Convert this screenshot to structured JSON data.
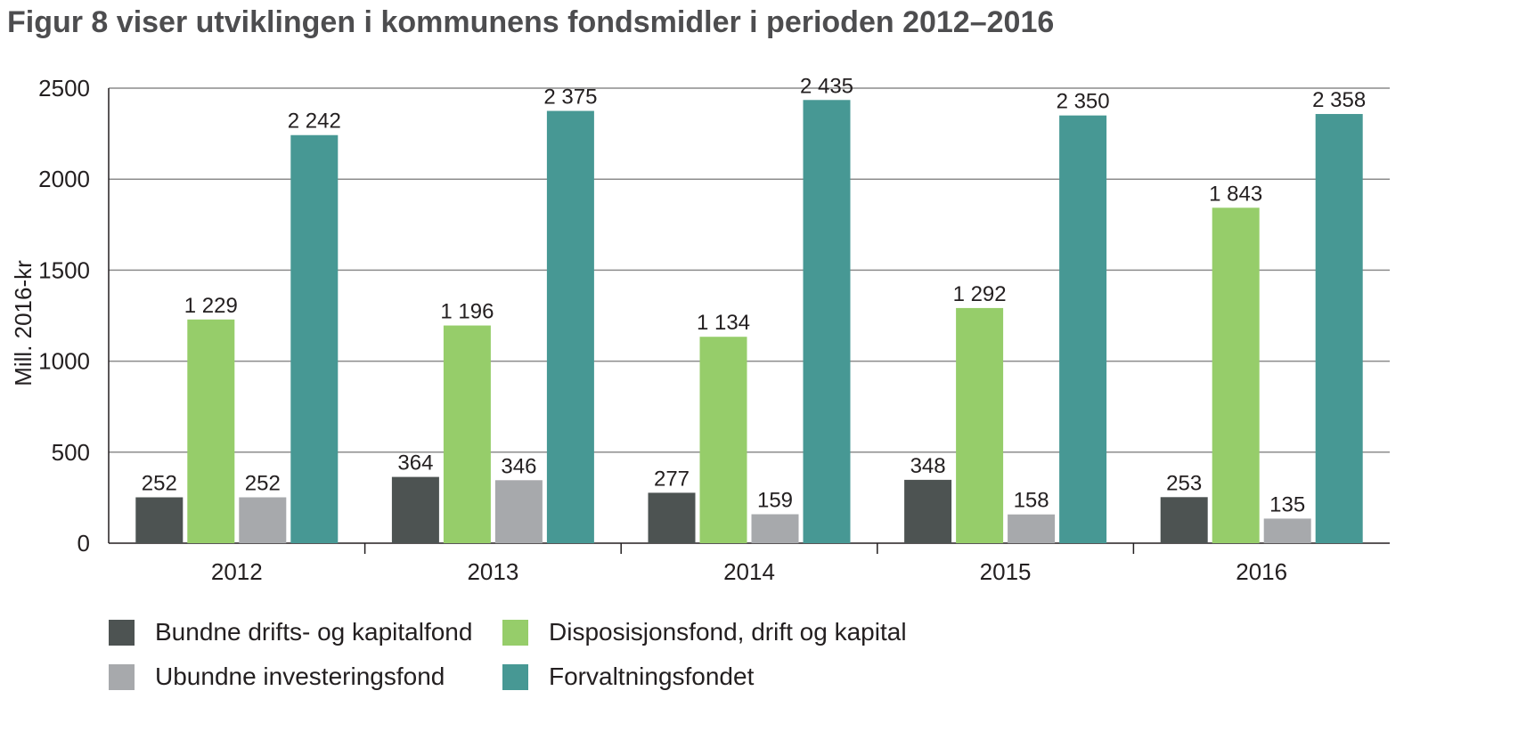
{
  "chart_data": {
    "type": "bar",
    "title": "Figur 8 viser utviklingen i kommunens fondsmidler i perioden 2012–2016",
    "xlabel": "",
    "ylabel": "Mill. 2016-kr",
    "ylim": [
      0,
      2500
    ],
    "yticks": [
      0,
      500,
      1000,
      1500,
      2000,
      2500
    ],
    "grid": true,
    "legend_position": "bottom",
    "categories": [
      "2012",
      "2013",
      "2014",
      "2015",
      "2016"
    ],
    "series": [
      {
        "name": "Bundne drifts- og kapitalfond",
        "color": "#4d5352",
        "values": [
          252,
          364,
          277,
          348,
          253
        ],
        "labels": [
          "252",
          "364",
          "277",
          "348",
          "253"
        ]
      },
      {
        "name": "Disposisjonsfond, drift og kapital",
        "color": "#96cd6a",
        "values": [
          1229,
          1196,
          1134,
          1292,
          1843
        ],
        "labels": [
          "1 229",
          "1 196",
          "1 134",
          "1 292",
          "1 843"
        ]
      },
      {
        "name": "Ubundne investeringsfond",
        "color": "#a7a9ac",
        "values": [
          252,
          346,
          159,
          158,
          135
        ],
        "labels": [
          "252",
          "346",
          "159",
          "158",
          "135"
        ]
      },
      {
        "name": "Forvaltningsfondet",
        "color": "#479894",
        "values": [
          2242,
          2375,
          2435,
          2350,
          2358
        ],
        "labels": [
          "2 242",
          "2 375",
          "2 435",
          "2 350",
          "2 358"
        ]
      }
    ]
  }
}
